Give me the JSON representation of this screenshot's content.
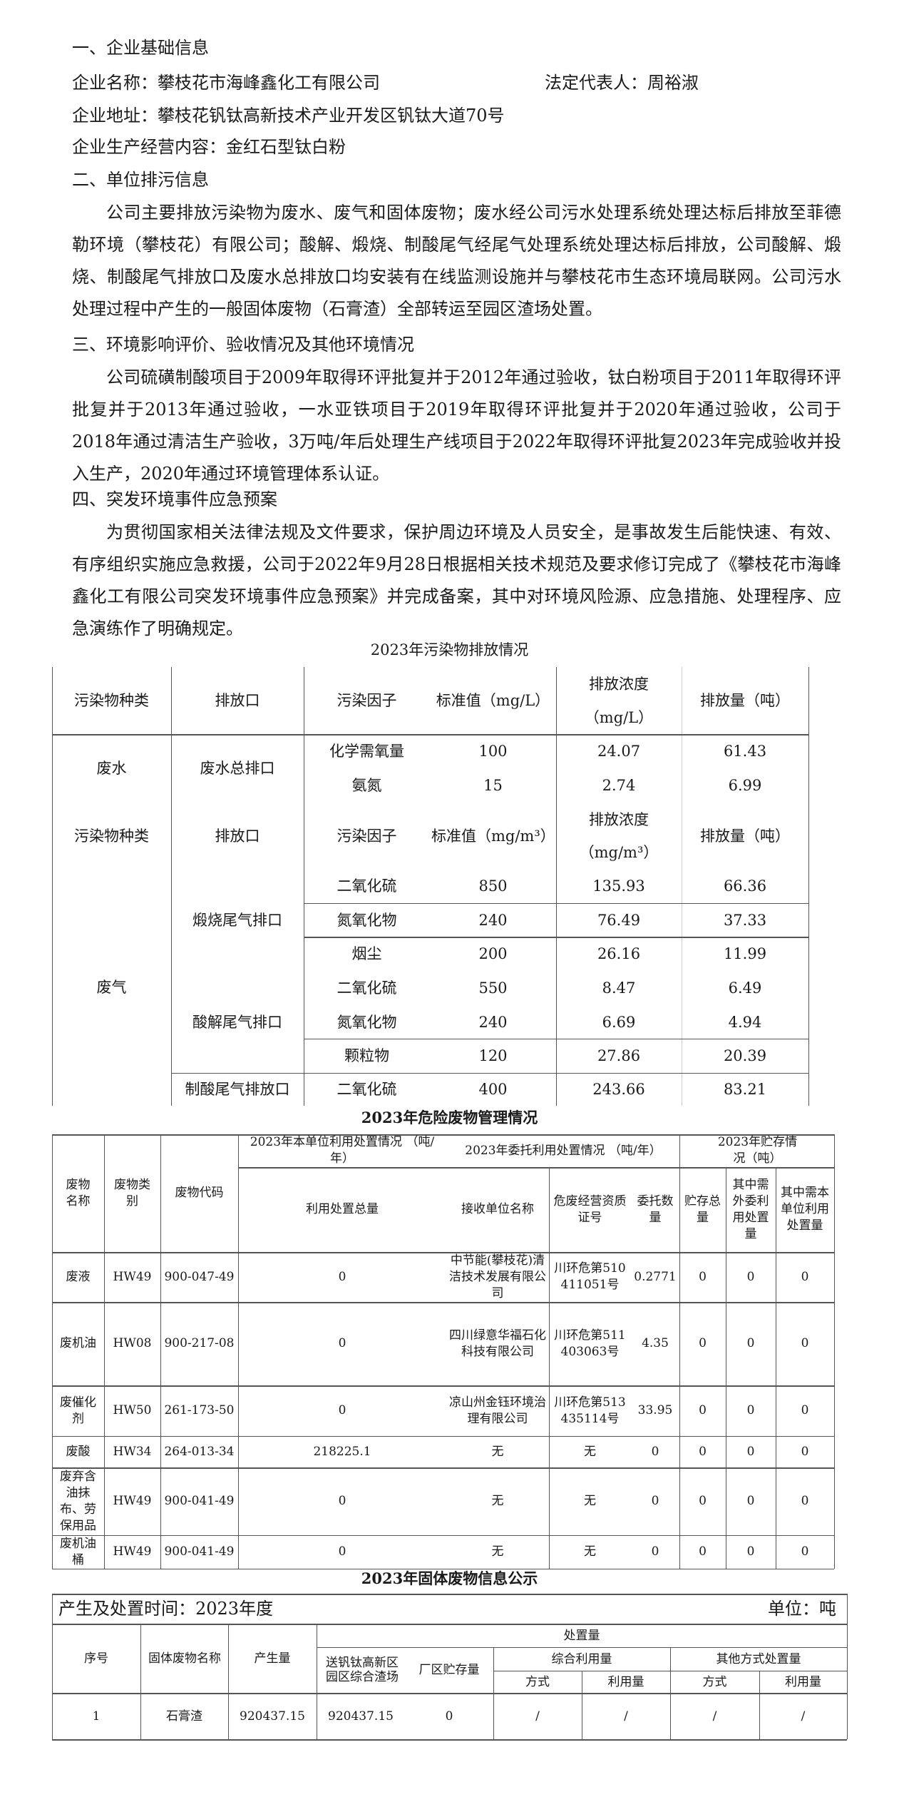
{
  "sections": {
    "s1": "一、企业基础信息",
    "s2": "二、单位排污信息",
    "s3": "三、环境影响评价、验收情况及其他环境情况",
    "s4": "四、突发环境事件应急预案"
  },
  "company": {
    "name": "企业名称：攀枝花市海峰鑫化工有限公司",
    "legal_rep": "法定代表人：周裕淑",
    "address": "企业地址：攀枝花钒钛高新技术产业开发区钒钛大道70号",
    "business": "企业生产经营内容：金红石型钛白粉"
  },
  "paragraphs": {
    "p2": "公司主要排放污染物为废水、废气和固体废物；废水经公司污水处理系统处理达标后排放至菲德勒环境（攀枝花）有限公司；酸解、煅烧、制酸尾气经尾气处理系统处理达标后排放，公司酸解、煅烧、制酸尾气排放口及废水总排放口均安装有在线监测设施并与攀枝花市生态环境局联网。公司污水处理过程中产生的一般固体废物（石膏渣）全部转运至园区渣场处置。",
    "p3": "公司硫磺制酸项目于2009年取得环评批复并于2012年通过验收，钛白粉项目于2011年取得环评批复并于2013年通过验收，一水亚铁项目于2019年取得环评批复并于2020年通过验收，公司于2018年通过清洁生产验收，3万吨/年后处理生产线项目于2022年取得环评批复2023年完成验收并投入生产，2020年通过环境管理体系认证。",
    "p4": "为贯彻国家相关法律法规及文件要求，保护周边环境及人员安全，是事故发生后能快速、有效、有序组织实施应急救援，公司于2022年9月28日根据相关技术规范及要求修订完成了《攀枝花市海峰鑫化工有限公司突发环境事件应急预案》并完成备案，其中对环境风险源、应急措施、处理程序、应急演练作了明确规定。"
  },
  "emissions": {
    "title": "2023年污染物排放情况",
    "header": {
      "type": "污染物种类",
      "outlet": "排放口",
      "factor": "污染因子",
      "standard": "标准值（mg/L）",
      "conc": "排放浓度",
      "conc_unit": "（mg/L）",
      "amount": "排放量（吨）"
    },
    "water": {
      "type": "废水",
      "outlet": "废水总排口",
      "rows": [
        [
          "化学需氧量",
          "100",
          "24.07",
          "61.43"
        ],
        [
          "氨氮",
          "15",
          "2.74",
          "6.99"
        ]
      ]
    },
    "gas_header": {
      "type": "污染物种类",
      "outlet": "排放口",
      "factor": "污染因子",
      "standard": "标准值（mg/m³）",
      "conc": "排放浓度",
      "conc_unit": "（mg/m³）",
      "amount": "排放量（吨）"
    },
    "gas": {
      "type": "废气",
      "outlets": [
        "煅烧尾气排口",
        "酸解尾气排口",
        "制酸尾气排放口"
      ],
      "rows": [
        [
          "二氧化硫",
          "850",
          "135.93",
          "66.36"
        ],
        [
          "氮氧化物",
          "240",
          "76.49",
          "37.33"
        ],
        [
          "烟尘",
          "200",
          "26.16",
          "11.99"
        ],
        [
          "二氧化硫",
          "550",
          "8.47",
          "6.49"
        ],
        [
          "氮氧化物",
          "240",
          "6.69",
          "4.94"
        ],
        [
          "颗粒物",
          "120",
          "27.86",
          "20.39"
        ],
        [
          "二氧化硫",
          "400",
          "243.66",
          "83.21"
        ]
      ]
    }
  },
  "hazardous": {
    "title": "2023年危险废物管理情况",
    "group_headers": {
      "self": "2023年本单位利用处置情况 （吨/年）",
      "entrusted": "2023年委托利用处置情况 （吨/年）",
      "storage": "2023年贮存情况（吨）"
    },
    "headers": [
      "废物名称",
      "废物类别",
      "废物代码",
      "利用处置总量",
      "接收单位名称",
      "危废经营资质证号",
      "委托数量",
      "贮存总量",
      "其中需外委利用处置量",
      "其中需本单位利用处置量"
    ],
    "rows": [
      [
        "废液",
        "HW49",
        "900-047-49",
        "0",
        "中节能(攀枝花)清洁技术发展有限公司",
        "川环危第510411051号",
        "0.2771",
        "0",
        "0",
        "0"
      ],
      [
        "废机油",
        "HW08",
        "900-217-08",
        "0",
        "四川绿意华福石化科技有限公司",
        "川环危第511403063号",
        "4.35",
        "0",
        "0",
        "0"
      ],
      [
        "废催化剂",
        "HW50",
        "261-173-50",
        "0",
        "凉山州金钰环境治理有限公司",
        "川环危第513435114号",
        "33.95",
        "0",
        "0",
        "0"
      ],
      [
        "废酸",
        "HW34",
        "264-013-34",
        "218225.1",
        "无",
        "无",
        "0",
        "0",
        "0",
        "0"
      ],
      [
        "废弃含油抹布、劳保用品",
        "HW49",
        "900-041-49",
        "0",
        "无",
        "无",
        "0",
        "0",
        "0",
        "0"
      ],
      [
        "废机油桶",
        "HW49",
        "900-041-49",
        "0",
        "无",
        "无",
        "0",
        "0",
        "0",
        "0"
      ]
    ]
  },
  "solid": {
    "title": "2023年固体废物信息公示",
    "period": "产生及处置时间：2023年度",
    "unit": "单位：吨",
    "headers": {
      "no": "序号",
      "name": "固体废物名称",
      "produced": "产生量",
      "disposal": "处置量",
      "park": "送钒钛高新区园区综合渣场",
      "stored": "厂区贮存量",
      "comprehensive": "综合利用量",
      "other": "其他方式处置量",
      "method1": "方式",
      "use1": "利用量",
      "method2": "方式",
      "use2": "利用量"
    },
    "rows": [
      [
        "1",
        "石膏渣",
        "920437.15",
        "920437.15",
        "0",
        "/",
        "/",
        "/",
        "/"
      ]
    ]
  }
}
